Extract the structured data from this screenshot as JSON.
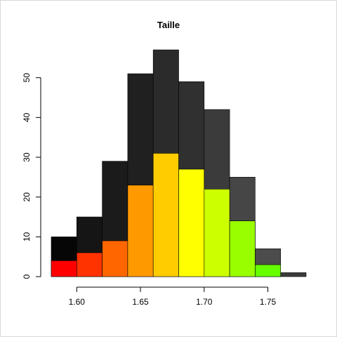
{
  "chart_data": {
    "type": "bar",
    "title": "Taille",
    "xlabel": "",
    "ylabel": "",
    "bin_edges": [
      1.58,
      1.6,
      1.62,
      1.64,
      1.66,
      1.68,
      1.7,
      1.72,
      1.74,
      1.76,
      1.78
    ],
    "xlim": [
      1.58,
      1.78
    ],
    "ylim": [
      0,
      57
    ],
    "x_ticks": [
      "1.60",
      "1.65",
      "1.70",
      "1.75"
    ],
    "y_ticks": [
      "0",
      "10",
      "20",
      "30",
      "40",
      "50"
    ],
    "grid": false,
    "series": [
      {
        "values": [
          10,
          15,
          29,
          51,
          57,
          49,
          42,
          25,
          7,
          1
        ],
        "colors": [
          "#060606",
          "#151515",
          "#1b1b1b",
          "#202020",
          "#2b2b2b",
          "#303030",
          "#3b3b3b",
          "#464646",
          "#4c4c4c",
          "#3c3c3c"
        ]
      },
      {
        "values": [
          4,
          6,
          9,
          23,
          31,
          27,
          22,
          14,
          3,
          0
        ],
        "colors": [
          "#ff0000",
          "#ff3300",
          "#ff6600",
          "#ff9900",
          "#ffcc00",
          "#ffff00",
          "#ccff00",
          "#99ff00",
          "#66ff00",
          "#33ff00"
        ]
      }
    ]
  }
}
